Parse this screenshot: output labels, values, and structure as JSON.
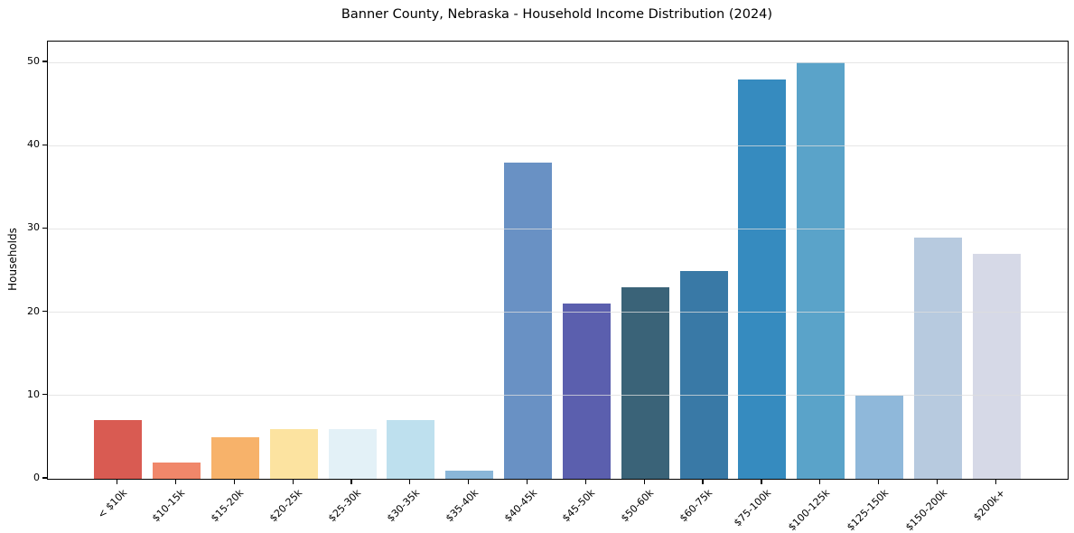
{
  "chart_data": {
    "type": "bar",
    "title": "Banner County, Nebraska - Household Income Distribution (2024)",
    "xlabel": "",
    "ylabel": "Households",
    "categories": [
      "< $10k",
      "$10-15k",
      "$15-20k",
      "$20-25k",
      "$25-30k",
      "$30-35k",
      "$35-40k",
      "$40-45k",
      "$45-50k",
      "$50-60k",
      "$60-75k",
      "$75-100k",
      "$100-125k",
      "$125-150k",
      "$150-200k",
      "$200k+"
    ],
    "values": [
      7,
      2,
      5,
      6,
      6,
      7,
      1,
      38,
      21,
      23,
      25,
      48,
      50,
      10,
      29,
      27
    ],
    "bar_colors": [
      "#d95b52",
      "#f0876a",
      "#f7b26a",
      "#fce3a0",
      "#e3f1f7",
      "#bee0ee",
      "#8ab6d8",
      "#6991c4",
      "#5b5fae",
      "#3a6378",
      "#3979a6",
      "#368bbf",
      "#5aa3c9",
      "#8fb8da",
      "#b7cadf",
      "#d6d9e7"
    ],
    "yticks": [
      0,
      10,
      20,
      30,
      40,
      50
    ],
    "ylim": [
      0,
      52.5
    ],
    "grid": "horizontal",
    "grid_on_top": true,
    "legend": "none",
    "frame": "all-spines",
    "tick_label_rotation": 45
  }
}
